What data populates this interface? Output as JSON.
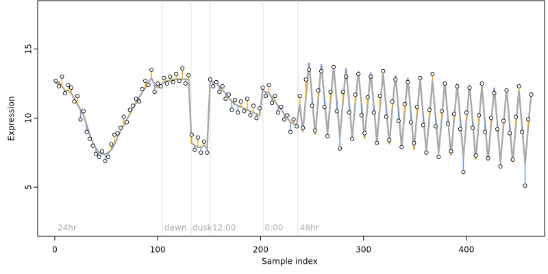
{
  "chart_data": {
    "type": "scatter",
    "xlabel": "Sample index",
    "ylabel": "Expression",
    "xlim": [
      -16.6,
      475.9
    ],
    "ylim": [
      1.44,
      18.5
    ],
    "xticks": [
      0,
      100,
      200,
      300,
      400
    ],
    "yticks": [
      5,
      10,
      15
    ],
    "point_color": "#000000",
    "fit_color": "#a9a9a9",
    "above_color": "#ffa500",
    "below_color": "#6495ed",
    "vline_color": "#dddddd",
    "vlines": [
      104.5,
      132.4,
      151.1,
      202.3,
      236.3
    ],
    "annotations": [
      {
        "text": "24hr",
        "x": 2.7
      },
      {
        "text": "dawn",
        "x": 106.5
      },
      {
        "text": "dusk",
        "x": 133.8
      },
      {
        "text": "12:00",
        "x": 153
      },
      {
        "text": "0:00",
        "x": 204
      },
      {
        "text": "48hr",
        "x": 238
      }
    ],
    "x": [
      1,
      4,
      7,
      10,
      13,
      16,
      19,
      22,
      25,
      28,
      31,
      34,
      37,
      40,
      43,
      46,
      49,
      52,
      55,
      58,
      61,
      64,
      67,
      70,
      73,
      76,
      79,
      82,
      85,
      88,
      91,
      94,
      97,
      100,
      103,
      106,
      109,
      112,
      115,
      118,
      121,
      124,
      127,
      130,
      133,
      136,
      139,
      142,
      145,
      148,
      151,
      154,
      157,
      160,
      163,
      166,
      169,
      172,
      175,
      178,
      181,
      184,
      187,
      190,
      193,
      196,
      199,
      202,
      205,
      208,
      211,
      214,
      217,
      220,
      223,
      226,
      229,
      232,
      235,
      238,
      241,
      244,
      247,
      250,
      253,
      256,
      259,
      262,
      265,
      268,
      271,
      274,
      277,
      280,
      283,
      286,
      289,
      292,
      295,
      298,
      301,
      304,
      307,
      310,
      313,
      316,
      319,
      322,
      325,
      328,
      331,
      334,
      337,
      340,
      343,
      346,
      349,
      352,
      355,
      358,
      361,
      364,
      367,
      370,
      373,
      376,
      379,
      382,
      385,
      388,
      391,
      394,
      397,
      400,
      403,
      406,
      409,
      412,
      415,
      418,
      421,
      424,
      427,
      430,
      433,
      436,
      439,
      442,
      445,
      448,
      451,
      454,
      457,
      460,
      463
    ],
    "values": [
      12.7,
      12.3,
      13.0,
      11.8,
      12.4,
      12.2,
      11.2,
      11.6,
      9.9,
      10.5,
      9.0,
      8.5,
      8.0,
      7.4,
      7.2,
      7.6,
      6.9,
      7.2,
      8.1,
      8.8,
      8.9,
      9.3,
      10.1,
      9.7,
      10.6,
      10.9,
      11.4,
      11.2,
      12.1,
      12.7,
      12.4,
      13.5,
      11.9,
      12.5,
      12.3,
      12.9,
      12.5,
      13.0,
      12.6,
      13.2,
      12.7,
      13.6,
      12.5,
      13.1,
      8.8,
      7.7,
      8.6,
      7.5,
      8.3,
      7.5,
      12.8,
      12.3,
      12.6,
      11.9,
      12.3,
      11.4,
      11.7,
      10.6,
      11.3,
      10.4,
      11.2,
      10.5,
      11.4,
      10.2,
      10.9,
      10.0,
      10.7,
      12.2,
      11.6,
      12.4,
      11.1,
      11.6,
      10.4,
      10.8,
      9.9,
      10.2,
      9.0,
      9.9,
      9.4,
      11.6,
      9.3,
      12.8,
      13.5,
      10.9,
      9.1,
      12.0,
      13.4,
      10.8,
      8.7,
      11.9,
      13.7,
      10.5,
      7.8,
      11.9,
      13.0,
      10.4,
      8.5,
      11.7,
      13.2,
      10.2,
      8.9,
      11.5,
      13.0,
      10.4,
      8.2,
      11.6,
      13.4,
      10.1,
      8.4,
      11.2,
      12.8,
      9.8,
      7.9,
      11.0,
      12.6,
      9.7,
      8.2,
      10.8,
      12.9,
      9.5,
      7.5,
      10.6,
      13.2,
      9.4,
      7.2,
      10.5,
      12.5,
      9.6,
      7.6,
      10.3,
      12.3,
      9.2,
      6.1,
      10.4,
      12.2,
      9.3,
      7.3,
      10.2,
      12.5,
      9.0,
      7.1,
      10.0,
      11.8,
      9.2,
      6.5,
      9.8,
      12.0,
      8.9,
      7.0,
      10.1,
      12.3,
      9.0,
      5.1,
      9.9,
      11.7
    ],
    "fitted": [
      12.5,
      12.6,
      12.3,
      12.0,
      12.0,
      11.8,
      11.4,
      11.0,
      10.6,
      10.2,
      9.5,
      8.8,
      8.2,
      7.8,
      7.5,
      7.4,
      7.4,
      7.5,
      7.7,
      8.1,
      8.6,
      9.1,
      9.5,
      9.9,
      10.3,
      10.7,
      11.1,
      11.5,
      11.9,
      12.2,
      12.6,
      12.9,
      12.4,
      12.2,
      12.4,
      12.6,
      12.7,
      12.7,
      12.8,
      12.8,
      12.8,
      12.8,
      12.8,
      12.8,
      8.2,
      8.0,
      7.9,
      7.9,
      8.0,
      7.8,
      12.7,
      12.6,
      12.5,
      12.3,
      12.0,
      11.8,
      11.5,
      11.2,
      11.0,
      10.9,
      10.8,
      10.7,
      10.6,
      10.5,
      10.4,
      10.3,
      10.2,
      12.0,
      11.9,
      11.8,
      11.5,
      11.2,
      10.9,
      10.6,
      10.3,
      10.0,
      9.7,
      9.6,
      9.5,
      11.0,
      9.0,
      11.5,
      14.0,
      11.5,
      8.8,
      11.4,
      13.9,
      11.4,
      8.9,
      11.3,
      13.7,
      11.2,
      8.6,
      11.2,
      13.6,
      11.1,
      8.6,
      11.1,
      13.4,
      11.0,
      8.5,
      11.0,
      13.3,
      10.9,
      8.3,
      10.9,
      13.2,
      10.8,
      8.1,
      10.7,
      13.1,
      10.6,
      7.9,
      10.5,
      12.9,
      10.4,
      7.7,
      10.3,
      12.8,
      10.2,
      7.6,
      10.1,
      12.7,
      10.1,
      7.5,
      10.0,
      12.6,
      10.0,
      7.3,
      9.9,
      12.5,
      9.9,
      7.1,
      9.8,
      12.4,
      9.8,
      7.0,
      9.7,
      12.3,
      9.7,
      6.9,
      9.6,
      12.2,
      9.6,
      6.8,
      9.5,
      12.1,
      9.5,
      6.8,
      9.5,
      12.0,
      9.4,
      6.7,
      9.4,
      11.9
    ]
  }
}
